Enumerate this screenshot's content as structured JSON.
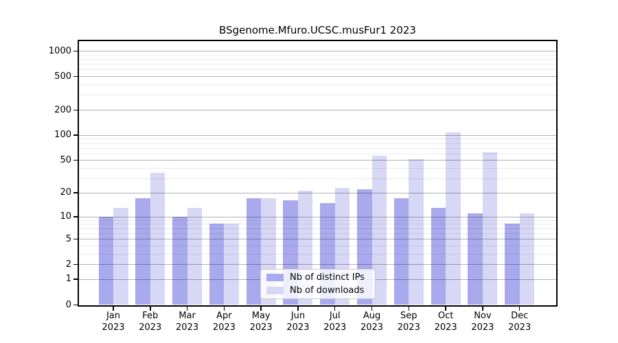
{
  "title": "BSgenome.Mfuro.UCSC.musFur1 2023",
  "chart_data": {
    "type": "bar",
    "title": "BSgenome.Mfuro.UCSC.musFur1 2023",
    "categories": [
      "Jan",
      "Feb",
      "Mar",
      "Apr",
      "May",
      "Jun",
      "Jul",
      "Aug",
      "Sep",
      "Oct",
      "Nov",
      "Dec"
    ],
    "category_year": "2023",
    "series": [
      {
        "name": "Nb of distinct IPs",
        "color": "#a9a9ed",
        "values": [
          10,
          17,
          10,
          8,
          17,
          16,
          15,
          22,
          17,
          13,
          11,
          8
        ]
      },
      {
        "name": "Nb of downloads",
        "color": "#d7d7f6",
        "values": [
          13,
          35,
          13,
          8,
          17,
          21,
          23,
          56,
          51,
          108,
          62,
          11
        ]
      }
    ],
    "yscale": "log1p",
    "ylim": [
      0,
      1300
    ],
    "yticks": [
      0,
      1,
      2,
      5,
      10,
      20,
      50,
      100,
      200,
      500,
      1000
    ],
    "minor_gridlines": [
      3,
      4,
      6,
      7,
      8,
      9,
      30,
      40,
      60,
      70,
      80,
      90,
      300,
      400,
      600,
      700,
      800,
      900
    ],
    "grid": true,
    "legend_position": "lower center",
    "xlabel": "",
    "ylabel": ""
  }
}
